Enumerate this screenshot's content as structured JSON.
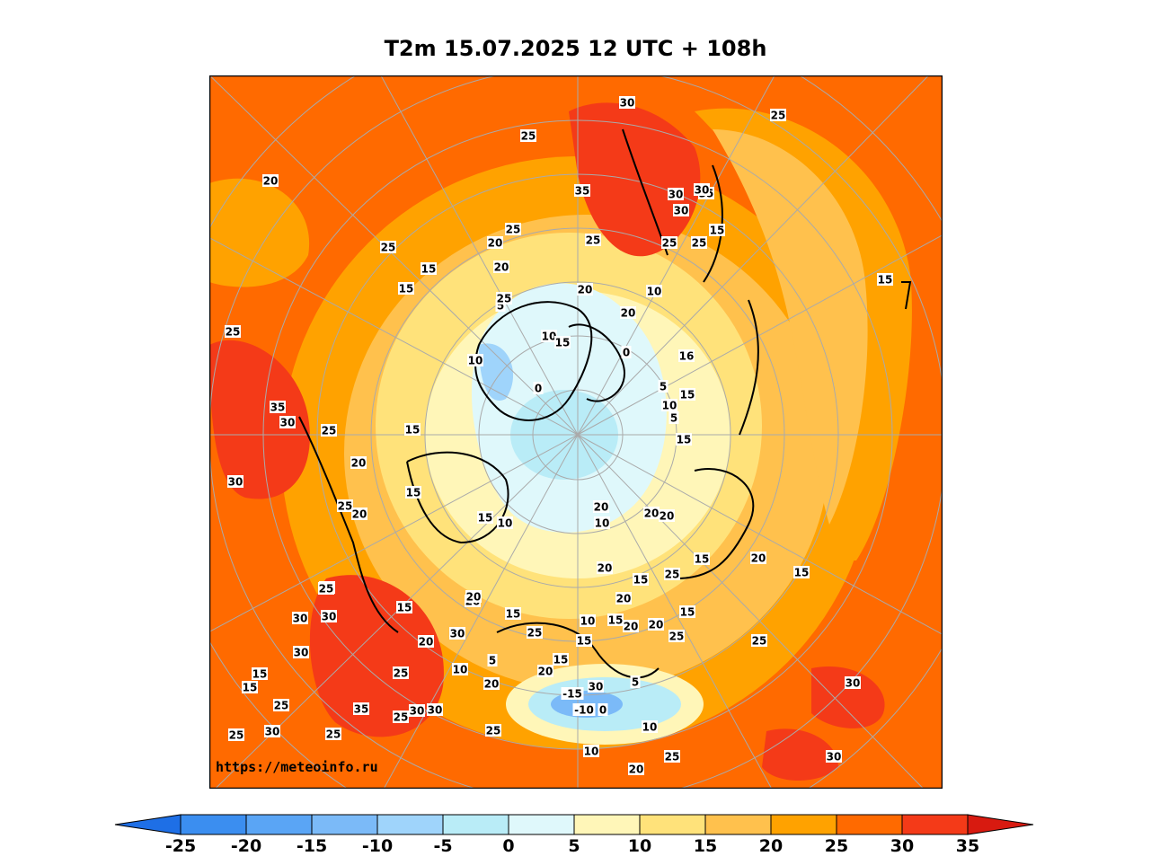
{
  "title": "T2m 15.07.2025 12 UTC + 108h",
  "credit": "https://meteoinfo.ru",
  "colorbar": {
    "ticks": [
      "-25",
      "-20",
      "-15",
      "-10",
      "-5",
      "0",
      "5",
      "10",
      "15",
      "20",
      "25",
      "30",
      "35"
    ],
    "colors": [
      "#1e6fe6",
      "#3b8ef0",
      "#5aa5f5",
      "#7bbaf8",
      "#9fd4fb",
      "#b9ecf7",
      "#dff8fb",
      "#fff6b8",
      "#ffe27a",
      "#ffc14d",
      "#ffa200",
      "#ff6a00",
      "#f43a18",
      "#d81a10"
    ]
  },
  "contour_labels": [
    "30",
    "25",
    "25",
    "20",
    "35",
    "30",
    "35",
    "30",
    "30",
    "25",
    "25",
    "15",
    "25",
    "25",
    "25",
    "20",
    "15",
    "20",
    "15",
    "10",
    "5",
    "20",
    "20",
    "25",
    "10",
    "15",
    "0",
    "10",
    "5",
    "0",
    "25",
    "35",
    "30",
    "25",
    "15",
    "16",
    "15",
    "15",
    "5",
    "20",
    "15",
    "10",
    "30",
    "25",
    "15",
    "15",
    "20",
    "20",
    "20",
    "10",
    "25",
    "15",
    "20",
    "10",
    "15",
    "20",
    "25",
    "30",
    "20",
    "15",
    "30",
    "25",
    "15",
    "30",
    "30",
    "15",
    "20",
    "15",
    "20",
    "20",
    "30",
    "15",
    "25",
    "15",
    "20",
    "10",
    "20",
    "25",
    "10",
    "20",
    "5",
    "15",
    "5",
    "20",
    "15",
    "-15",
    "-10",
    "0",
    "30",
    "25",
    "15",
    "30",
    "10",
    "35",
    "25",
    "30",
    "25",
    "25",
    "25",
    "25",
    "30",
    "30",
    "20",
    "10",
    "20",
    "25",
    "30"
  ]
}
